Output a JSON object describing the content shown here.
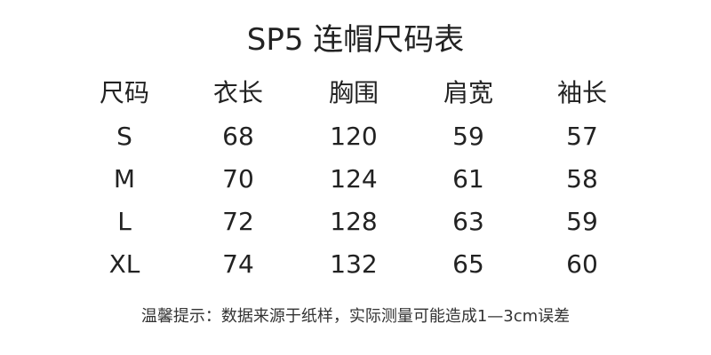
{
  "title": "SP5 连帽尺码表",
  "table": {
    "headers": [
      "尺码",
      "衣长",
      "胸围",
      "肩宽",
      "袖长"
    ],
    "rows": [
      [
        "S",
        "68",
        "120",
        "59",
        "57"
      ],
      [
        "M",
        "70",
        "124",
        "61",
        "58"
      ],
      [
        "L",
        "72",
        "128",
        "63",
        "59"
      ],
      [
        "XL",
        "74",
        "132",
        "65",
        "60"
      ]
    ]
  },
  "note": "温馨提示：数据来源于纸样，实际测量可能造成1—3cm误差"
}
